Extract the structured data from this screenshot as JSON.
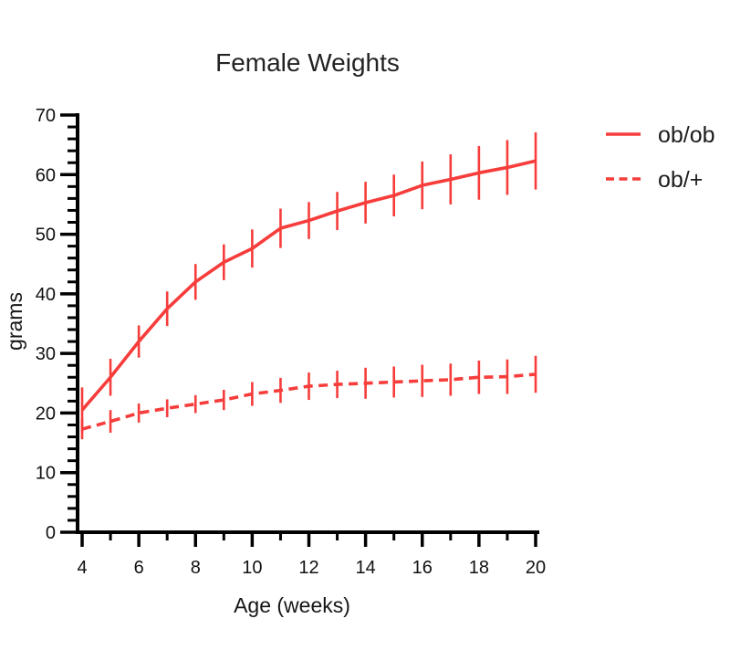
{
  "colors": {
    "series_red": "#F63D3B",
    "axis_black": "#000000",
    "text_dark": "#161616",
    "background": "#FFFFFF"
  },
  "legend": {
    "items": [
      {
        "label": "ob/ob",
        "swatch": "solid-line"
      },
      {
        "label": "ob/+",
        "swatch": "dashed-line"
      }
    ]
  },
  "chart_data": {
    "type": "line",
    "title": "Female Weights",
    "xlabel": "Age (weeks)",
    "ylabel": "grams",
    "xlim": [
      4,
      20
    ],
    "ylim": [
      0,
      70
    ],
    "x_ticks_major": [
      4,
      6,
      8,
      10,
      12,
      14,
      16,
      18,
      20
    ],
    "x_minor_tick_step": 1,
    "y_ticks_major": [
      0,
      10,
      20,
      30,
      40,
      50,
      60,
      70
    ],
    "y_minor_tick_step": 2,
    "grid": false,
    "legend_position": "right-outside",
    "error_bars": "plain-vertical-no-caps",
    "x": [
      4,
      5,
      6,
      7,
      8,
      9,
      10,
      11,
      12,
      13,
      14,
      15,
      16,
      17,
      18,
      19,
      20
    ],
    "series": [
      {
        "name": "ob/ob",
        "style": "solid",
        "color": "#F63D3B",
        "values": [
          20.5,
          26,
          32,
          37.5,
          42,
          45.3,
          47.6,
          51,
          52.3,
          53.9,
          55.3,
          56.5,
          58.2,
          59.2,
          60.3,
          61.2,
          62.3
        ],
        "sd": [
          3.8,
          3.1,
          2.7,
          2.9,
          3.0,
          3.0,
          3.2,
          3.3,
          3.1,
          3.2,
          3.5,
          3.5,
          4.0,
          4.2,
          4.5,
          4.6,
          4.8
        ]
      },
      {
        "name": "ob/+",
        "style": "dashed",
        "color": "#F63D3B",
        "values": [
          17.3,
          18.6,
          20,
          20.8,
          21.5,
          22.2,
          23.2,
          23.8,
          24.5,
          24.8,
          25,
          25.2,
          25.4,
          25.6,
          26,
          26.1,
          26.5
        ],
        "sd": [
          1.7,
          1.9,
          1.6,
          1.5,
          1.5,
          1.7,
          2.0,
          2.1,
          2.3,
          2.3,
          2.6,
          2.6,
          2.7,
          2.7,
          2.8,
          2.9,
          3.1
        ]
      }
    ]
  }
}
